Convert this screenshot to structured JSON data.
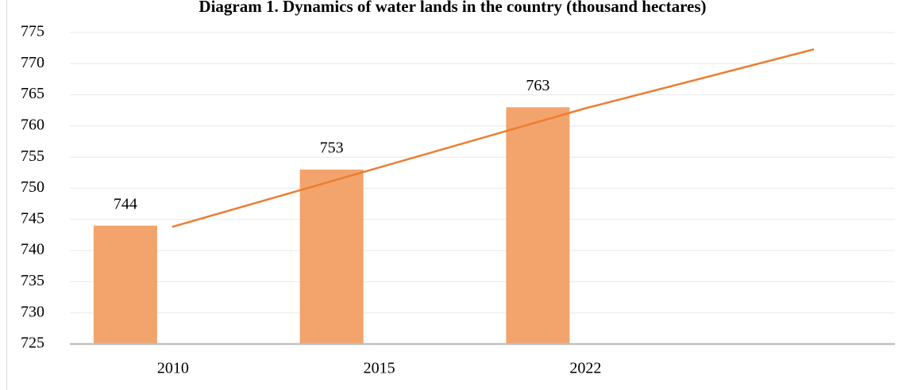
{
  "chart_data": {
    "type": "bar",
    "title": "Diagram 1. Dynamics of water lands in the country (thousand hectares)",
    "categories": [
      "2010",
      "2015",
      "2022",
      null
    ],
    "values": [
      744,
      753,
      763,
      null
    ],
    "color": "#f2a46c",
    "trendline": {
      "color": "#ed7d31",
      "values": [
        743.8,
        753.3,
        762.8,
        772.3
      ]
    },
    "ylim": [
      725,
      775
    ],
    "yticks": [
      725,
      730,
      735,
      740,
      745,
      750,
      755,
      760,
      765,
      770,
      775
    ],
    "grid": true
  }
}
